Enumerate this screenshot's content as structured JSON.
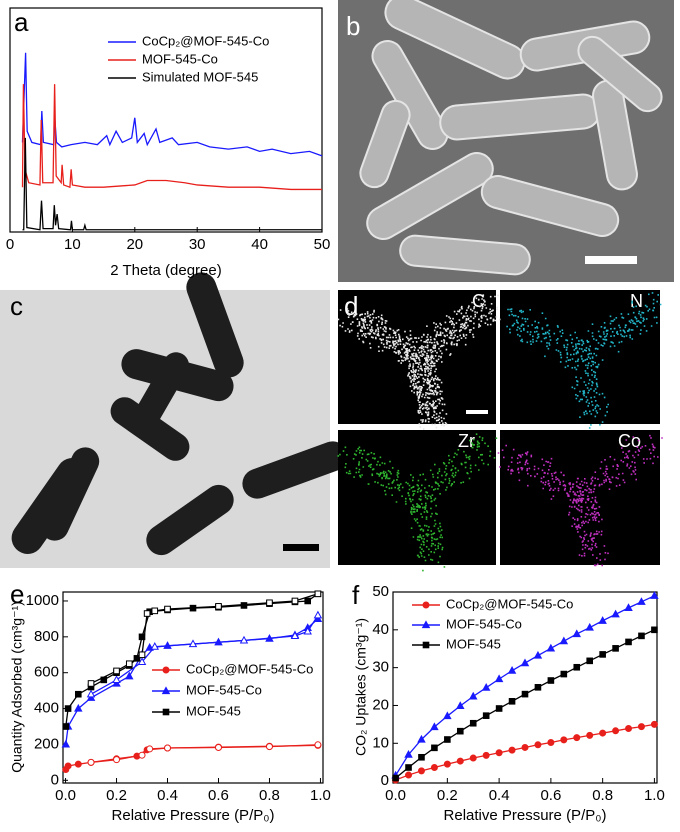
{
  "chart_data": [
    {
      "type": "line",
      "panel": "a",
      "xlabel": "2 Theta (degree)",
      "xlim": [
        0,
        50
      ],
      "ylim": [
        0,
        100
      ],
      "xticks": [
        0,
        10,
        20,
        30,
        40,
        50
      ],
      "series": [
        {
          "name": "CoCp₂@MOF-545-Co",
          "color": "#1a1aff",
          "x": [
            2,
            2.25,
            2.5,
            2.75,
            3.5,
            4.9,
            5.1,
            5.35,
            7.0,
            7.2,
            7.45,
            8.3,
            9.8,
            12,
            14,
            15.5,
            16,
            17,
            18,
            19.5,
            20,
            20.4,
            21.5,
            22,
            23.4,
            24,
            26,
            27,
            30,
            32,
            35,
            38,
            40,
            42,
            45,
            48,
            50
          ],
          "values": [
            40,
            60,
            80,
            45,
            40,
            39,
            54,
            40,
            39,
            50,
            40,
            38,
            39,
            40,
            39,
            43,
            39,
            45,
            40,
            42,
            51,
            40,
            44,
            39,
            46,
            40,
            42,
            39,
            40,
            38,
            37,
            38,
            36,
            37,
            35,
            36,
            34
          ]
        },
        {
          "name": "MOF-545-Co",
          "color": "#e8201c",
          "x": [
            2,
            2.15,
            2.4,
            3,
            4.8,
            5.0,
            5.25,
            6.9,
            7.15,
            7.4,
            8.2,
            8.35,
            8.6,
            9.6,
            9.8,
            10.0,
            12,
            15,
            20,
            22,
            25,
            28,
            30,
            35,
            40,
            45,
            50
          ],
          "values": [
            20,
            66,
            28,
            22,
            21,
            50,
            22,
            22,
            66,
            25,
            22,
            30,
            21,
            20,
            28,
            21,
            20,
            20,
            21,
            23,
            23,
            22,
            21,
            20,
            20,
            19,
            19
          ]
        },
        {
          "name": "Simulated MOF-545",
          "color": "#000000",
          "x": [
            2,
            2.2,
            2.45,
            2.7,
            4.8,
            5.05,
            5.3,
            6.9,
            7.1,
            7.3,
            7.55,
            7.8,
            9.7,
            9.85,
            10.0,
            11.8,
            12.0,
            12.2,
            50
          ],
          "values": [
            1,
            1,
            42,
            2,
            1,
            14,
            1.5,
            1.5,
            12,
            3,
            8,
            1.5,
            1,
            5,
            1,
            1,
            3,
            1,
            1
          ]
        }
      ]
    },
    {
      "type": "line",
      "panel": "e",
      "xlabel": "Relative Pressure (P/P₀)",
      "ylabel": "Quantity Adsorbed (cm³g⁻¹)",
      "xlim": [
        -0.01,
        1.01
      ],
      "ylim": [
        -15,
        1050
      ],
      "xticks": [
        {
          "value": 0,
          "label": "0.0"
        },
        0.2,
        0.4,
        0.6,
        0.8,
        {
          "value": 1,
          "label": "1.0"
        }
      ],
      "yticks": [
        0,
        200,
        400,
        600,
        800,
        1000
      ],
      "series": [
        {
          "name": "CoCp₂@MOF-545-Co",
          "color": "#e8201c",
          "marker": "circle",
          "x": [
            0.001,
            0.01,
            0.05,
            0.1,
            0.2,
            0.28,
            0.32,
            0.4,
            0.6,
            0.8,
            0.99
          ],
          "values": [
            60,
            80,
            90,
            100,
            120,
            135,
            170,
            180,
            185,
            190,
            195
          ],
          "desorption": {
            "x": [
              0.99,
              0.8,
              0.6,
              0.4,
              0.33,
              0.3,
              0.2,
              0.1
            ],
            "values": [
              198,
              188,
              183,
              180,
              175,
              140,
              115,
              100
            ]
          }
        },
        {
          "name": "MOF-545-Co",
          "color": "#1a1aff",
          "marker": "triangle",
          "x": [
            0.001,
            0.01,
            0.05,
            0.1,
            0.2,
            0.25,
            0.3,
            0.33,
            0.4,
            0.6,
            0.8,
            0.9,
            0.95,
            0.99
          ],
          "values": [
            200,
            300,
            400,
            460,
            540,
            580,
            700,
            740,
            750,
            770,
            790,
            810,
            850,
            900
          ],
          "desorption": {
            "x": [
              0.99,
              0.95,
              0.9,
              0.7,
              0.5,
              0.35,
              0.3,
              0.2,
              0.1
            ],
            "values": [
              920,
              830,
              805,
              780,
              760,
              745,
              660,
              560,
              480
            ]
          }
        },
        {
          "name": "MOF-545",
          "color": "#000000",
          "marker": "square",
          "x": [
            0.001,
            0.01,
            0.05,
            0.1,
            0.15,
            0.2,
            0.25,
            0.28,
            0.3,
            0.33,
            0.4,
            0.5,
            0.6,
            0.7,
            0.8,
            0.9,
            0.95,
            0.99
          ],
          "values": [
            300,
            400,
            480,
            520,
            560,
            600,
            640,
            680,
            800,
            940,
            950,
            960,
            965,
            975,
            985,
            995,
            1000,
            1040
          ],
          "desorption": {
            "x": [
              0.99,
              0.9,
              0.8,
              0.6,
              0.4,
              0.35,
              0.32,
              0.3,
              0.25,
              0.2,
              0.1
            ],
            "values": [
              1040,
              1000,
              990,
              970,
              955,
              945,
              930,
              700,
              650,
              610,
              540
            ]
          }
        }
      ]
    },
    {
      "type": "line",
      "panel": "f",
      "xlabel": "Relative Pressure (P/P₀)",
      "ylabel": "CO₂ Uptakes (cm³g⁻¹)",
      "xlim": [
        -0.01,
        1.01
      ],
      "ylim": [
        -0.5,
        50
      ],
      "xticks": [
        {
          "value": 0,
          "label": "0.0"
        },
        0.2,
        0.4,
        0.6,
        0.8,
        {
          "value": 1,
          "label": "1.0"
        }
      ],
      "yticks": [
        0,
        10,
        20,
        30,
        40,
        50
      ],
      "series": [
        {
          "name": "CoCp₂@MOF-545-Co",
          "color": "#e8201c",
          "marker": "circle",
          "x": [
            0,
            0.05,
            0.1,
            0.15,
            0.2,
            0.25,
            0.3,
            0.35,
            0.4,
            0.45,
            0.5,
            0.55,
            0.6,
            0.65,
            0.7,
            0.75,
            0.8,
            0.85,
            0.9,
            0.95,
            1
          ],
          "values": [
            0.3,
            1.6,
            2.7,
            3.6,
            4.5,
            5.3,
            6.1,
            6.8,
            7.5,
            8.2,
            8.9,
            9.6,
            10.2,
            10.9,
            11.5,
            12.1,
            12.7,
            13.3,
            13.9,
            14.4,
            15
          ]
        },
        {
          "name": "MOF-545-Co",
          "color": "#1a1aff",
          "marker": "triangle",
          "x": [
            0,
            0.05,
            0.1,
            0.15,
            0.2,
            0.25,
            0.3,
            0.35,
            0.4,
            0.45,
            0.5,
            0.55,
            0.6,
            0.65,
            0.7,
            0.75,
            0.8,
            0.85,
            0.9,
            0.95,
            1
          ],
          "values": [
            1.5,
            7.0,
            11.0,
            14.3,
            17.2,
            19.9,
            22.4,
            24.7,
            27.0,
            29.2,
            31.2,
            33.2,
            35.1,
            37.0,
            38.9,
            40.6,
            42.4,
            44.1,
            45.8,
            47.4,
            49
          ]
        },
        {
          "name": "MOF-545",
          "color": "#000000",
          "marker": "square",
          "x": [
            0,
            0.05,
            0.1,
            0.15,
            0.2,
            0.25,
            0.3,
            0.35,
            0.4,
            0.45,
            0.5,
            0.55,
            0.6,
            0.65,
            0.7,
            0.75,
            0.8,
            0.85,
            0.9,
            0.95,
            1
          ],
          "values": [
            0.8,
            3.6,
            6.3,
            8.8,
            11.0,
            13.2,
            15.3,
            17.3,
            19.2,
            21.1,
            23.0,
            24.8,
            26.6,
            28.3,
            30.1,
            31.8,
            33.5,
            35.1,
            36.8,
            38.4,
            40
          ]
        }
      ]
    }
  ],
  "images": [
    {
      "panel": "b"
    },
    {
      "panel": "c"
    },
    {
      "panel": "d",
      "maps": [
        "C",
        "N",
        "Zr",
        "Co"
      ]
    }
  ]
}
